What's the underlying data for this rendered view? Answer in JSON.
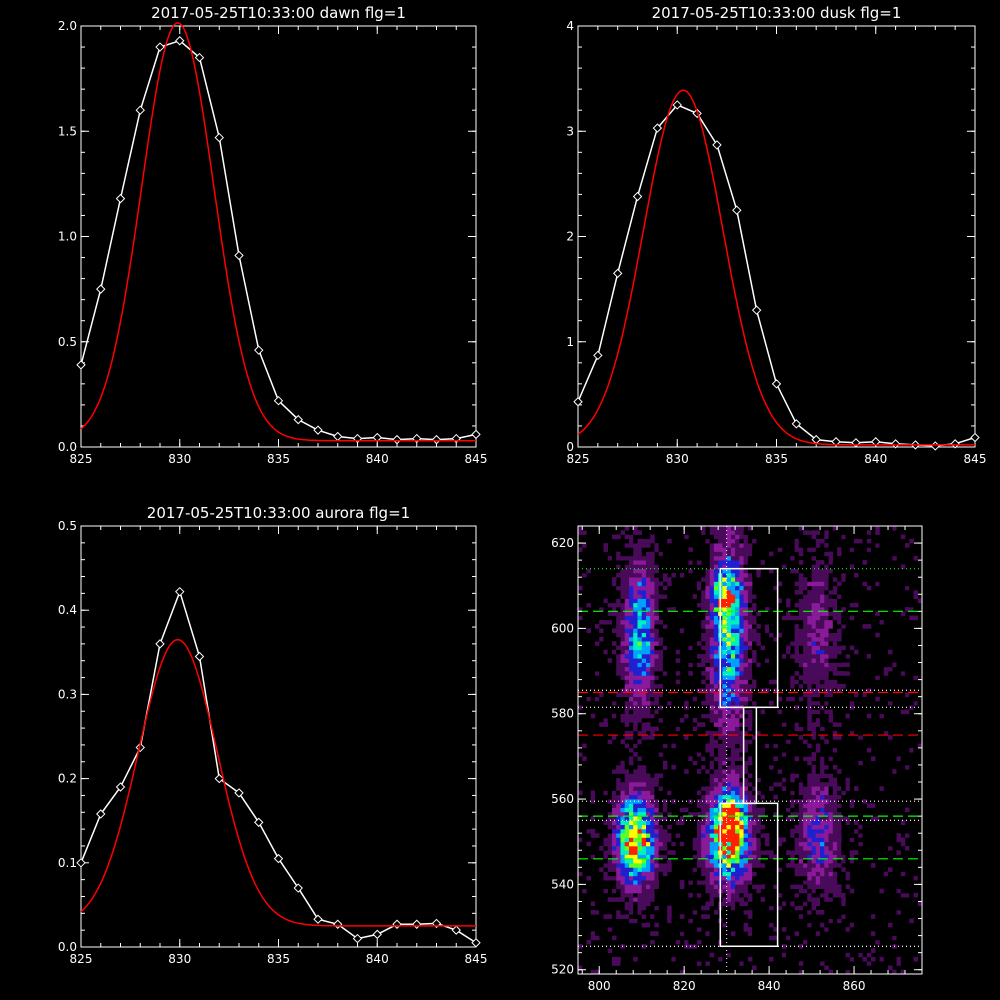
{
  "chart_data": [
    {
      "type": "line",
      "title": "2017-05-25T10:33:00 dawn flg=1",
      "xlim": [
        825,
        845
      ],
      "ylim": [
        0,
        2.0
      ],
      "xticks": [
        "825",
        "830",
        "835",
        "840",
        "845"
      ],
      "yticks": [
        "0.0",
        "0.5",
        "1.0",
        "1.5",
        "2.0"
      ],
      "series": [
        {
          "color": "#ffffff",
          "markers": "diamond",
          "x": [
            825,
            826,
            827,
            828,
            829,
            830,
            831,
            832,
            833,
            834,
            835,
            836,
            837,
            838,
            839,
            840,
            841,
            842,
            843,
            844,
            845
          ],
          "y": [
            0.39,
            0.75,
            1.18,
            1.6,
            1.9,
            1.93,
            1.85,
            1.47,
            0.91,
            0.46,
            0.22,
            0.13,
            0.08,
            0.05,
            0.04,
            0.045,
            0.035,
            0.04,
            0.035,
            0.04,
            0.06
          ]
        },
        {
          "color": "#ff0000",
          "fit": "gaussian",
          "amp": 1.985,
          "center": 829.9,
          "sigma": 1.83,
          "base": 0.03
        }
      ]
    },
    {
      "type": "line",
      "title": "2017-05-25T10:33:00 dusk flg=1",
      "xlim": [
        825,
        845
      ],
      "ylim": [
        0,
        4
      ],
      "xticks": [
        "825",
        "830",
        "835",
        "840",
        "845"
      ],
      "yticks": [
        "0",
        "1",
        "2",
        "3",
        "4"
      ],
      "series": [
        {
          "color": "#ffffff",
          "markers": "diamond",
          "x": [
            825,
            826,
            827,
            828,
            829,
            830,
            831,
            832,
            833,
            834,
            835,
            836,
            837,
            838,
            839,
            840,
            841,
            842,
            843,
            844,
            845
          ],
          "y": [
            0.43,
            0.87,
            1.65,
            2.38,
            3.03,
            3.25,
            3.17,
            2.87,
            2.25,
            1.3,
            0.6,
            0.22,
            0.07,
            0.05,
            0.04,
            0.05,
            0.03,
            0.02,
            0.01,
            0.03,
            0.09
          ]
        },
        {
          "color": "#ff0000",
          "fit": "gaussian",
          "amp": 3.37,
          "center": 830.3,
          "sigma": 2.0,
          "base": 0.02
        }
      ]
    },
    {
      "type": "line",
      "title": "2017-05-25T10:33:00 aurora flg=1",
      "xlim": [
        825,
        845
      ],
      "ylim": [
        0,
        0.5
      ],
      "xticks": [
        "825",
        "830",
        "835",
        "840",
        "845"
      ],
      "yticks": [
        "0.0",
        "0.1",
        "0.2",
        "0.3",
        "0.4",
        "0.5"
      ],
      "series": [
        {
          "color": "#ffffff",
          "markers": "diamond",
          "x": [
            825,
            826,
            827,
            828,
            829,
            830,
            831,
            832,
            833,
            834,
            835,
            836,
            837,
            838,
            839,
            840,
            841,
            842,
            843,
            844,
            845
          ],
          "y": [
            0.1,
            0.158,
            0.19,
            0.237,
            0.36,
            0.422,
            0.345,
            0.2,
            0.183,
            0.148,
            0.105,
            0.07,
            0.033,
            0.027,
            0.01,
            0.015,
            0.027,
            0.027,
            0.028,
            0.02,
            0.005
          ]
        },
        {
          "color": "#ff0000",
          "fit": "gaussian",
          "amp": 0.34,
          "center": 829.9,
          "sigma": 2.0,
          "base": 0.025
        }
      ]
    },
    {
      "type": "heatmap",
      "xlim": [
        795,
        876
      ],
      "ylim": [
        519,
        624
      ],
      "xticks": [
        "800",
        "820",
        "840",
        "860"
      ],
      "yticks": [
        "520",
        "540",
        "560",
        "580",
        "600",
        "620"
      ],
      "colormap": [
        "#000000",
        "#4a0a5a",
        "#8a1a9a",
        "#2020d0",
        "#00a0ff",
        "#00f0c0",
        "#60ff20",
        "#ffff00",
        "#ff2000"
      ],
      "blobs": [
        {
          "x": 809,
          "y": 598,
          "sx": 2.5,
          "sy": 11,
          "v": 0.5
        },
        {
          "x": 830,
          "y": 598,
          "sx": 2.8,
          "sy": 14,
          "v": 0.55
        },
        {
          "x": 829,
          "y": 607,
          "sx": 2.2,
          "sy": 4,
          "v": 0.45
        },
        {
          "x": 851,
          "y": 598,
          "sx": 3,
          "sy": 11,
          "v": 0.2
        },
        {
          "x": 808,
          "y": 550,
          "sx": 3,
          "sy": 7,
          "v": 0.85
        },
        {
          "x": 830,
          "y": 551,
          "sx": 3.2,
          "sy": 7,
          "v": 0.95
        },
        {
          "x": 831,
          "y": 555,
          "sx": 1.6,
          "sy": 2.5,
          "v": 0.35
        },
        {
          "x": 851,
          "y": 551,
          "sx": 3,
          "sy": 9,
          "v": 0.3
        }
      ],
      "boxes": [
        {
          "x0": 828.5,
          "x1": 842,
          "y0": 581.5,
          "y1": 614
        },
        {
          "x0": 834,
          "x1": 837,
          "y0": 559,
          "y1": 581.5
        },
        {
          "x0": 828.5,
          "x1": 842,
          "y0": 525.5,
          "y1": 559
        }
      ],
      "hlines": [
        {
          "y": 614,
          "color": "#00ff00",
          "style": "dotted"
        },
        {
          "y": 604,
          "color": "#00ff00",
          "style": "dashed"
        },
        {
          "y": 585,
          "color": "#ff0000",
          "style": "dashed"
        },
        {
          "y": 585.5,
          "color": "#ffffff",
          "style": "dotted"
        },
        {
          "y": 581.5,
          "color": "#ffffff",
          "style": "dotted"
        },
        {
          "y": 575,
          "color": "#ff0000",
          "style": "dashed"
        },
        {
          "y": 559.5,
          "color": "#ffffff",
          "style": "dotted"
        },
        {
          "y": 556,
          "color": "#00ff00",
          "style": "dashed"
        },
        {
          "y": 555,
          "color": "#ffffff",
          "style": "dotted"
        },
        {
          "y": 546,
          "color": "#00ff00",
          "style": "dashed"
        },
        {
          "y": 525.5,
          "color": "#ffffff",
          "style": "dotted"
        }
      ],
      "vlines": [
        {
          "x": 830,
          "color": "#ffffff",
          "style": "dotted"
        }
      ]
    }
  ]
}
